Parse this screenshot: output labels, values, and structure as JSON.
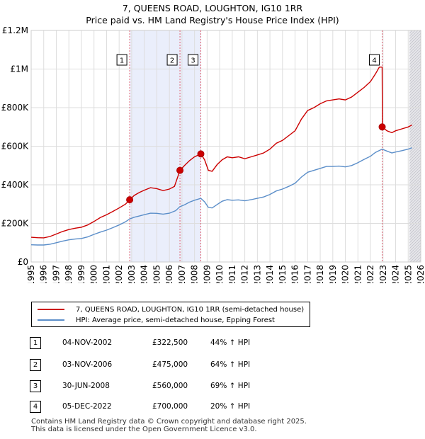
{
  "title_line1": "7, QUEENS ROAD, LOUGHTON, IG10 1RR",
  "title_line2": "Price paid vs. HM Land Registry's House Price Index (HPI)",
  "chart_data": {
    "type": "line",
    "title": "7, QUEENS ROAD, LOUGHTON, IG10 1RR",
    "subtitle": "Price paid vs. HM Land Registry's House Price Index (HPI)",
    "xlabel": "",
    "ylabel": "",
    "xlim": [
      1995,
      2026
    ],
    "ylim": [
      0,
      1200000
    ],
    "x_ticks": [
      "1995",
      "1996",
      "1997",
      "1998",
      "1999",
      "2000",
      "2001",
      "2002",
      "2003",
      "2004",
      "2005",
      "2006",
      "2007",
      "2008",
      "2009",
      "2010",
      "2011",
      "2012",
      "2013",
      "2014",
      "2015",
      "2016",
      "2017",
      "2018",
      "2019",
      "2020",
      "2021",
      "2022",
      "2023",
      "2024",
      "2025",
      "2026"
    ],
    "y_ticks": [
      {
        "value": 0,
        "label": "£0"
      },
      {
        "value": 200000,
        "label": "£200K"
      },
      {
        "value": 400000,
        "label": "£400K"
      },
      {
        "value": 600000,
        "label": "£600K"
      },
      {
        "value": 800000,
        "label": "£800K"
      },
      {
        "value": 1000000,
        "label": "£1M"
      },
      {
        "value": 1200000,
        "label": "£1.2M"
      }
    ],
    "grid": true,
    "series": [
      {
        "name": "7, QUEENS ROAD, LOUGHTON, IG10 1RR (semi-detached house)",
        "color": "#cc0000",
        "points": [
          [
            1995.0,
            128000
          ],
          [
            1995.5,
            126000
          ],
          [
            1996.0,
            125000
          ],
          [
            1996.5,
            132000
          ],
          [
            1997.0,
            145000
          ],
          [
            1997.5,
            158000
          ],
          [
            1998.0,
            168000
          ],
          [
            1998.5,
            175000
          ],
          [
            1999.0,
            180000
          ],
          [
            1999.5,
            192000
          ],
          [
            2000.0,
            210000
          ],
          [
            2000.5,
            230000
          ],
          [
            2001.0,
            245000
          ],
          [
            2001.5,
            262000
          ],
          [
            2002.0,
            280000
          ],
          [
            2002.5,
            300000
          ],
          [
            2002.84,
            322500
          ],
          [
            2003.2,
            345000
          ],
          [
            2003.6,
            360000
          ],
          [
            2004.0,
            372000
          ],
          [
            2004.5,
            385000
          ],
          [
            2005.0,
            380000
          ],
          [
            2005.5,
            370000
          ],
          [
            2006.0,
            378000
          ],
          [
            2006.4,
            392000
          ],
          [
            2006.84,
            475000
          ],
          [
            2007.2,
            500000
          ],
          [
            2007.6,
            525000
          ],
          [
            2008.0,
            545000
          ],
          [
            2008.5,
            560000
          ],
          [
            2008.8,
            530000
          ],
          [
            2009.1,
            475000
          ],
          [
            2009.4,
            470000
          ],
          [
            2009.8,
            505000
          ],
          [
            2010.2,
            530000
          ],
          [
            2010.6,
            545000
          ],
          [
            2011.0,
            540000
          ],
          [
            2011.5,
            545000
          ],
          [
            2012.0,
            535000
          ],
          [
            2012.5,
            545000
          ],
          [
            2013.0,
            555000
          ],
          [
            2013.5,
            565000
          ],
          [
            2014.0,
            585000
          ],
          [
            2014.5,
            615000
          ],
          [
            2015.0,
            630000
          ],
          [
            2015.5,
            655000
          ],
          [
            2016.0,
            680000
          ],
          [
            2016.5,
            740000
          ],
          [
            2017.0,
            785000
          ],
          [
            2017.5,
            800000
          ],
          [
            2018.0,
            820000
          ],
          [
            2018.5,
            835000
          ],
          [
            2019.0,
            840000
          ],
          [
            2019.5,
            845000
          ],
          [
            2020.0,
            840000
          ],
          [
            2020.5,
            855000
          ],
          [
            2021.0,
            880000
          ],
          [
            2021.5,
            905000
          ],
          [
            2022.0,
            935000
          ],
          [
            2022.4,
            975000
          ],
          [
            2022.7,
            1010000
          ],
          [
            2022.93,
            1010000
          ],
          [
            2022.95,
            700000
          ],
          [
            2023.3,
            680000
          ],
          [
            2023.7,
            670000
          ],
          [
            2024.0,
            680000
          ],
          [
            2024.5,
            690000
          ],
          [
            2025.0,
            700000
          ],
          [
            2025.3,
            710000
          ]
        ]
      },
      {
        "name": "HPI: Average price, semi-detached house, Epping Forest",
        "color": "#5b8ec9",
        "points": [
          [
            1995.0,
            89000
          ],
          [
            1995.5,
            88000
          ],
          [
            1996.0,
            88000
          ],
          [
            1996.5,
            92000
          ],
          [
            1997.0,
            100000
          ],
          [
            1997.5,
            108000
          ],
          [
            1998.0,
            115000
          ],
          [
            1998.5,
            119000
          ],
          [
            1999.0,
            122000
          ],
          [
            1999.5,
            130000
          ],
          [
            2000.0,
            143000
          ],
          [
            2000.5,
            155000
          ],
          [
            2001.0,
            165000
          ],
          [
            2001.5,
            178000
          ],
          [
            2002.0,
            192000
          ],
          [
            2002.5,
            208000
          ],
          [
            2002.84,
            223000
          ],
          [
            2003.2,
            232000
          ],
          [
            2003.6,
            238000
          ],
          [
            2004.0,
            245000
          ],
          [
            2004.5,
            253000
          ],
          [
            2005.0,
            252000
          ],
          [
            2005.5,
            248000
          ],
          [
            2006.0,
            253000
          ],
          [
            2006.5,
            266000
          ],
          [
            2006.84,
            287000
          ],
          [
            2007.2,
            296000
          ],
          [
            2007.6,
            310000
          ],
          [
            2008.0,
            320000
          ],
          [
            2008.5,
            330000
          ],
          [
            2008.8,
            312000
          ],
          [
            2009.1,
            283000
          ],
          [
            2009.4,
            280000
          ],
          [
            2009.8,
            298000
          ],
          [
            2010.2,
            315000
          ],
          [
            2010.6,
            323000
          ],
          [
            2011.0,
            320000
          ],
          [
            2011.5,
            322000
          ],
          [
            2012.0,
            317000
          ],
          [
            2012.5,
            323000
          ],
          [
            2013.0,
            330000
          ],
          [
            2013.5,
            337000
          ],
          [
            2014.0,
            350000
          ],
          [
            2014.5,
            368000
          ],
          [
            2015.0,
            378000
          ],
          [
            2015.5,
            392000
          ],
          [
            2016.0,
            408000
          ],
          [
            2016.5,
            440000
          ],
          [
            2017.0,
            465000
          ],
          [
            2017.5,
            475000
          ],
          [
            2018.0,
            485000
          ],
          [
            2018.5,
            495000
          ],
          [
            2019.0,
            495000
          ],
          [
            2019.5,
            497000
          ],
          [
            2020.0,
            493000
          ],
          [
            2020.5,
            500000
          ],
          [
            2021.0,
            515000
          ],
          [
            2021.5,
            532000
          ],
          [
            2022.0,
            548000
          ],
          [
            2022.4,
            568000
          ],
          [
            2022.93,
            585000
          ],
          [
            2023.3,
            575000
          ],
          [
            2023.7,
            565000
          ],
          [
            2024.0,
            570000
          ],
          [
            2024.5,
            577000
          ],
          [
            2025.0,
            585000
          ],
          [
            2025.3,
            592000
          ]
        ]
      }
    ],
    "sales": [
      {
        "label": "1",
        "x": 2002.84,
        "value": 322500
      },
      {
        "label": "2",
        "x": 2006.84,
        "value": 475000
      },
      {
        "label": "3",
        "x": 2008.5,
        "value": 560000
      },
      {
        "label": "4",
        "x": 2022.93,
        "value": 700000
      }
    ],
    "shaded_ranges": [
      [
        2002.84,
        2008.5
      ],
      [
        2025.1,
        2026
      ]
    ]
  },
  "legend": {
    "red_label": "7, QUEENS ROAD, LOUGHTON, IG10 1RR (semi-detached house)",
    "blue_label": "HPI: Average price, semi-detached house, Epping Forest",
    "red_color": "#cc0000",
    "blue_color": "#5b8ec9"
  },
  "sales_table": [
    {
      "num": "1",
      "date": "04-NOV-2002",
      "price": "£322,500",
      "hpi": "44% ↑ HPI"
    },
    {
      "num": "2",
      "date": "03-NOV-2006",
      "price": "£475,000",
      "hpi": "64% ↑ HPI"
    },
    {
      "num": "3",
      "date": "30-JUN-2008",
      "price": "£560,000",
      "hpi": "69% ↑ HPI"
    },
    {
      "num": "4",
      "date": "05-DEC-2022",
      "price": "£700,000",
      "hpi": "20% ↑ HPI"
    }
  ],
  "footer": {
    "line1": "Contains HM Land Registry data © Crown copyright and database right 2025.",
    "line2": "This data is licensed under the Open Government Licence v3.0."
  }
}
